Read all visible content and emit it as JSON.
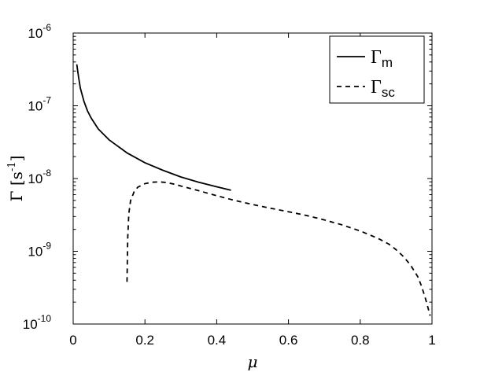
{
  "chart_data": {
    "type": "line",
    "xlabel": "μ",
    "ylabel": {
      "base": "Γ [s",
      "sup": "-1",
      "close": "]"
    },
    "xlim": [
      0,
      1
    ],
    "ylim": [
      1e-10,
      1e-06
    ],
    "yscale": "log",
    "grid": false,
    "legend_position": "top-right",
    "x_ticks": [
      {
        "value": 0,
        "label": "0"
      },
      {
        "value": 0.2,
        "label": "0.2"
      },
      {
        "value": 0.4,
        "label": "0.4"
      },
      {
        "value": 0.6,
        "label": "0.6"
      },
      {
        "value": 0.8,
        "label": "0.8"
      },
      {
        "value": 1,
        "label": "1"
      }
    ],
    "y_ticks": [
      {
        "value": 1e-10,
        "base": "10",
        "exp": "-10"
      },
      {
        "value": 1e-09,
        "base": "10",
        "exp": "-9"
      },
      {
        "value": 1e-08,
        "base": "10",
        "exp": "-8"
      },
      {
        "value": 1e-07,
        "base": "10",
        "exp": "-7"
      },
      {
        "value": 1e-06,
        "base": "10",
        "exp": "-6"
      }
    ],
    "series": [
      {
        "id": "gamma-m",
        "name_main": "Γ",
        "name_sub": "m",
        "style": "solid",
        "color": "#000000",
        "x": [
          0.01,
          0.015,
          0.02,
          0.03,
          0.04,
          0.05,
          0.07,
          0.1,
          0.15,
          0.2,
          0.25,
          0.3,
          0.35,
          0.4,
          0.44
        ],
        "y": [
          3.7e-07,
          2.5e-07,
          1.75e-07,
          1.15e-07,
          8.5e-08,
          6.8e-08,
          4.8e-08,
          3.4e-08,
          2.25e-08,
          1.65e-08,
          1.3e-08,
          1.05e-08,
          8.9e-09,
          7.7e-09,
          6.9e-09
        ]
      },
      {
        "id": "gamma-sc",
        "name_main": "Γ",
        "name_sub": "sc",
        "style": "dashed",
        "color": "#000000",
        "x": [
          0.15,
          0.152,
          0.155,
          0.16,
          0.17,
          0.18,
          0.2,
          0.22,
          0.24,
          0.26,
          0.28,
          0.3,
          0.35,
          0.4,
          0.45,
          0.5,
          0.55,
          0.6,
          0.65,
          0.7,
          0.75,
          0.8,
          0.85,
          0.88,
          0.9,
          0.92,
          0.94,
          0.96,
          0.97,
          0.98,
          0.99,
          0.995
        ],
        "y": [
          3.8e-10,
          1.5e-09,
          3.3e-09,
          5e-09,
          6.6e-09,
          7.6e-09,
          8.5e-09,
          8.9e-09,
          9e-09,
          8.8e-09,
          8.4e-09,
          7.9e-09,
          6.8e-09,
          5.8e-09,
          5e-09,
          4.4e-09,
          3.9e-09,
          3.5e-09,
          3.1e-09,
          2.7e-09,
          2.3e-09,
          1.9e-09,
          1.5e-09,
          1.25e-09,
          1.05e-09,
          8.5e-10,
          6.5e-10,
          4.5e-10,
          3.4e-10,
          2.4e-10,
          1.6e-10,
          1.3e-10
        ]
      }
    ]
  }
}
